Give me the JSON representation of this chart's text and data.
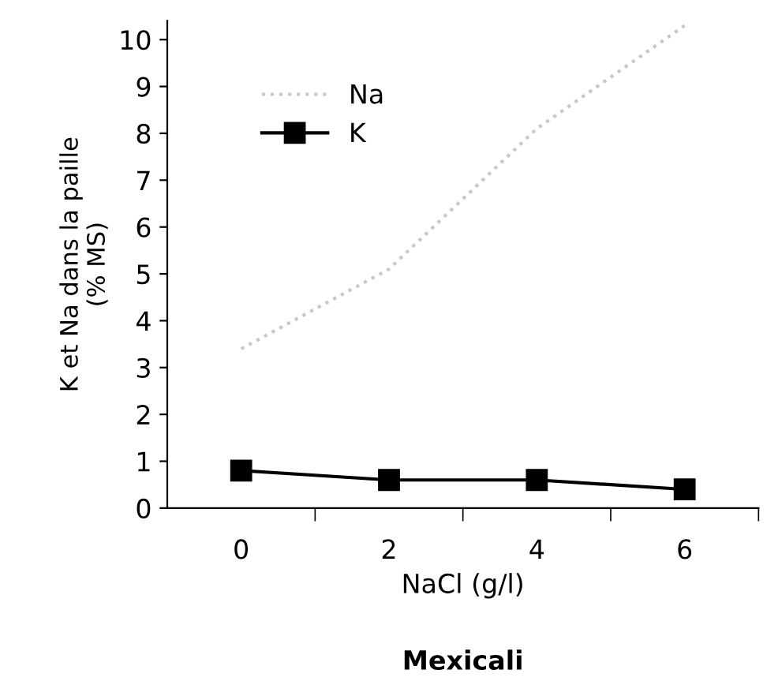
{
  "chart_data": {
    "type": "line",
    "title": "Mexicali",
    "xlabel": "NaCl (g/l)",
    "ylabel": "K et Na dans la paille\n(% MS)",
    "categories": [
      "0",
      "2",
      "4",
      "6"
    ],
    "series": [
      {
        "name": "Na",
        "color": "#c8c8c8",
        "values": [
          3.4,
          5.1,
          8.1,
          10.3
        ],
        "marker": "none",
        "line_style": "dotted"
      },
      {
        "name": "K",
        "color": "#000000",
        "values": [
          0.8,
          0.6,
          0.6,
          0.4
        ],
        "marker": "square",
        "line_style": "solid"
      }
    ],
    "ylim": [
      0,
      10.4
    ],
    "yticks": [
      0,
      1,
      2,
      3,
      4,
      5,
      6,
      7,
      8,
      9,
      10
    ],
    "grid": false,
    "legend": "top left"
  }
}
